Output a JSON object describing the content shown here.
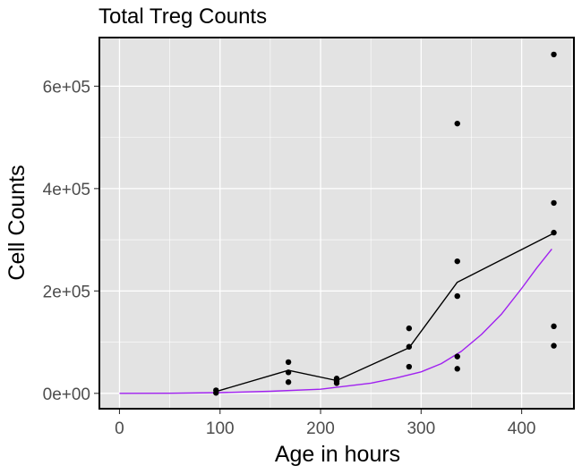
{
  "chart_data": {
    "type": "scatter",
    "title": "Total Treg Counts",
    "xlabel": "Age in hours",
    "ylabel": "Cell Counts",
    "xlim": [
      -20,
      452
    ],
    "ylim": [
      -30000,
      695000
    ],
    "x_ticks": [
      0,
      100,
      200,
      300,
      400
    ],
    "x_tick_labels": [
      "0",
      "100",
      "200",
      "300",
      "400"
    ],
    "y_ticks": [
      0,
      200000,
      400000,
      600000
    ],
    "y_tick_labels": [
      "0e+00",
      "2e+05",
      "4e+05",
      "6e+05"
    ],
    "grid": true,
    "legend": "none",
    "colors": {
      "panel_background": "#e3e3e3",
      "grid": "#ffffff",
      "points": "#000000",
      "mean_line": "#000000",
      "model_curve": "#a020f0"
    },
    "points": [
      {
        "x": 96,
        "y": 6000
      },
      {
        "x": 96,
        "y": 1000
      },
      {
        "x": 168,
        "y": 61000
      },
      {
        "x": 168,
        "y": 41000
      },
      {
        "x": 168,
        "y": 22000
      },
      {
        "x": 216,
        "y": 29000
      },
      {
        "x": 216,
        "y": 24000
      },
      {
        "x": 216,
        "y": 20000
      },
      {
        "x": 288,
        "y": 127000
      },
      {
        "x": 288,
        "y": 91000
      },
      {
        "x": 288,
        "y": 52000
      },
      {
        "x": 336,
        "y": 527000
      },
      {
        "x": 336,
        "y": 258000
      },
      {
        "x": 336,
        "y": 190000
      },
      {
        "x": 336,
        "y": 72000
      },
      {
        "x": 336,
        "y": 48000
      },
      {
        "x": 432,
        "y": 662000
      },
      {
        "x": 432,
        "y": 372000
      },
      {
        "x": 432,
        "y": 314000
      },
      {
        "x": 432,
        "y": 131000
      },
      {
        "x": 432,
        "y": 93000
      }
    ],
    "series": [
      {
        "x": [
          96,
          168,
          216,
          288,
          336,
          432
        ],
        "values": [
          3500,
          45000,
          25000,
          89000,
          217000,
          313000
        ]
      },
      {
        "x": [
          0,
          50,
          100,
          150,
          200,
          250,
          275,
          300,
          320,
          340,
          360,
          380,
          400,
          415,
          430
        ],
        "values": [
          0,
          300,
          1500,
          4000,
          8000,
          20000,
          30000,
          42000,
          58000,
          82000,
          115000,
          155000,
          205000,
          245000,
          282000
        ]
      }
    ]
  }
}
